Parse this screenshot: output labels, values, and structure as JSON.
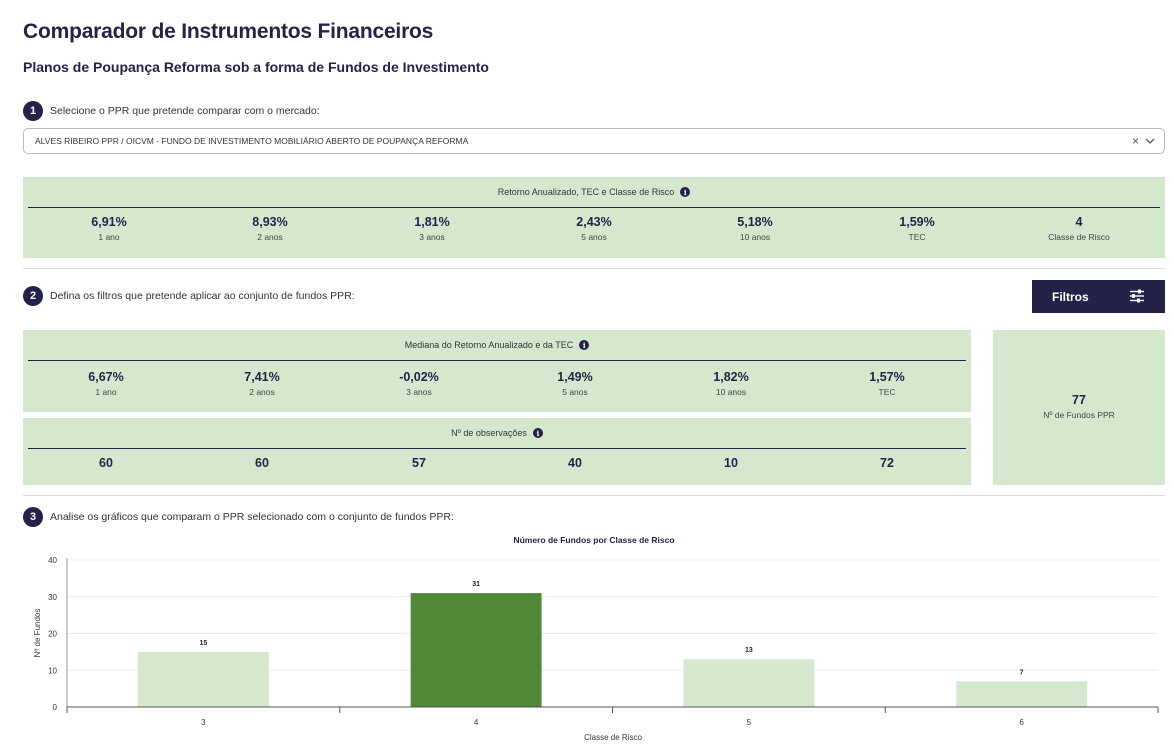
{
  "header": {
    "title": "Comparador de Instrumentos Financeiros",
    "subtitle": "Planos de Poupança Reforma sob a forma de Fundos de Investimento"
  },
  "step1": {
    "number": "1",
    "label": "Selecione o PPR que pretende comparar com o mercado:",
    "selected_value": "ALVES RIBEIRO PPR / OICVM - FUNDO DE INVESTIMENTO MOBILIÁRIO ABERTO DE POUPANÇA REFORMA",
    "clear_symbol": "×",
    "chevron_icon": "chevron-down-icon"
  },
  "returns_panel": {
    "heading": "Retorno Anualizado, TEC e Classe de Risco",
    "info_icon": "i",
    "metrics": [
      {
        "value": "6,91%",
        "label": "1 ano"
      },
      {
        "value": "8,93%",
        "label": "2 anos"
      },
      {
        "value": "1,81%",
        "label": "3 anos"
      },
      {
        "value": "2,43%",
        "label": "5 anos"
      },
      {
        "value": "5,18%",
        "label": "10 anos"
      },
      {
        "value": "1,59%",
        "label": "TEC"
      },
      {
        "value": "4",
        "label": "Classe de Risco"
      }
    ]
  },
  "step2": {
    "number": "2",
    "label": "Defina os filtros que pretende aplicar ao conjunto de fundos PPR:",
    "filters_button": "Filtros",
    "filters_icon": "sliders-icon"
  },
  "median_panel": {
    "heading": "Mediana do Retorno Anualizado e da TEC",
    "info_icon": "i",
    "metrics": [
      {
        "value": "6,67%",
        "label": "1 ano"
      },
      {
        "value": "7,41%",
        "label": "2 anos"
      },
      {
        "value": "-0,02%",
        "label": "3 anos"
      },
      {
        "value": "1,49%",
        "label": "5 anos"
      },
      {
        "value": "1,82%",
        "label": "10 anos"
      },
      {
        "value": "1,57%",
        "label": "TEC"
      }
    ]
  },
  "observations_panel": {
    "heading": "Nº de observações",
    "info_icon": "i",
    "values": [
      "60",
      "60",
      "57",
      "40",
      "10",
      "72"
    ]
  },
  "funds_count": {
    "value": "77",
    "label": "Nº de Fundos PPR"
  },
  "step3": {
    "number": "3",
    "label": "Analise os gráficos que comparam o PPR selecionado com o conjunto de fundos PPR:"
  },
  "colors": {
    "navy": "#25224a",
    "panel_green": "#d5e8cd",
    "bar_light": "#d5e8cd",
    "bar_highlight": "#4f8837"
  },
  "chart_data": {
    "type": "bar",
    "title": "Número de Fundos por Classe de Risco",
    "xlabel": "Classe de Risco",
    "ylabel": "Nº de Fundos",
    "categories": [
      "3",
      "4",
      "5",
      "6"
    ],
    "values": [
      15,
      31,
      13,
      7
    ],
    "highlight_category": "4",
    "ylim": [
      0,
      40
    ],
    "yticks": [
      0,
      10,
      20,
      30,
      40
    ]
  }
}
